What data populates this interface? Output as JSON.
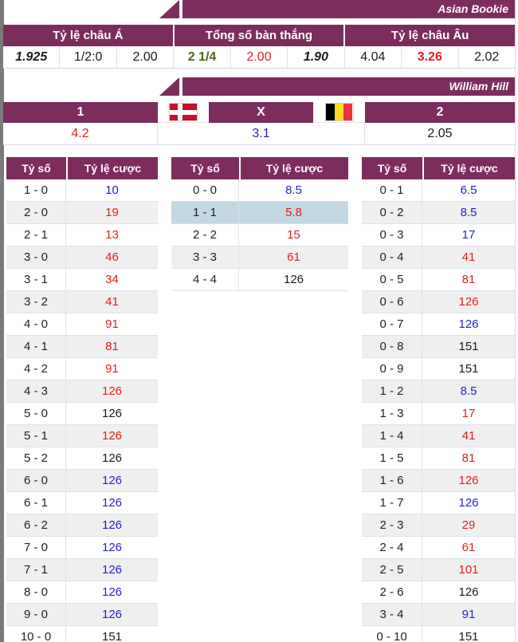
{
  "colors": {
    "purple": "#7c2d5d",
    "red": "#e01f1f",
    "blue": "#2323cc",
    "black": "#1a1a1a",
    "green": "#4a661a",
    "row_alt": "#efefef",
    "highlight": "#c3d8e2"
  },
  "banners": {
    "asian_bookie": "Asian Bookie",
    "william_hill": "William Hill"
  },
  "asian_odds": {
    "group_headers": [
      "Tỷ lệ châu Á",
      "Tổng số bàn thắng",
      "Tỷ lệ châu Âu"
    ],
    "values": [
      {
        "text": "1.925",
        "color": "black",
        "bold": true,
        "italic": true
      },
      {
        "text": "1/2:0",
        "color": "black",
        "bold": false,
        "italic": false
      },
      {
        "text": "2.00",
        "color": "black",
        "bold": false,
        "italic": false
      },
      {
        "text": "2 1/4",
        "color": "green",
        "bold": true,
        "italic": false
      },
      {
        "text": "2.00",
        "color": "red",
        "bold": false,
        "italic": false
      },
      {
        "text": "1.90",
        "color": "black",
        "bold": true,
        "italic": true
      },
      {
        "text": "4.04",
        "color": "black",
        "bold": false,
        "italic": false
      },
      {
        "text": "3.26",
        "color": "red",
        "bold": true,
        "italic": false
      },
      {
        "text": "2.02",
        "color": "black",
        "bold": false,
        "italic": false
      }
    ]
  },
  "william_hill": {
    "home_label": "1",
    "draw_label": "X",
    "away_label": "2",
    "home_flag": "denmark-flag",
    "away_flag": "belgium-flag",
    "values": [
      {
        "text": "4.2",
        "color": "red"
      },
      {
        "text": "3.1",
        "color": "blue"
      },
      {
        "text": "2.05",
        "color": "black"
      }
    ]
  },
  "score_tables": {
    "col_headers": [
      "Tỷ số",
      "Tỷ lệ cược"
    ],
    "tables": [
      {
        "name": "home-win-scores",
        "rows": [
          {
            "score": "1 - 0",
            "odds": "10",
            "color": "blue"
          },
          {
            "score": "2 - 0",
            "odds": "19",
            "color": "red"
          },
          {
            "score": "2 - 1",
            "odds": "13",
            "color": "red"
          },
          {
            "score": "3 - 0",
            "odds": "46",
            "color": "red"
          },
          {
            "score": "3 - 1",
            "odds": "34",
            "color": "red"
          },
          {
            "score": "3 - 2",
            "odds": "41",
            "color": "red"
          },
          {
            "score": "4 - 0",
            "odds": "91",
            "color": "red"
          },
          {
            "score": "4 - 1",
            "odds": "81",
            "color": "red"
          },
          {
            "score": "4 - 2",
            "odds": "91",
            "color": "red"
          },
          {
            "score": "4 - 3",
            "odds": "126",
            "color": "red"
          },
          {
            "score": "5 - 0",
            "odds": "126",
            "color": "black"
          },
          {
            "score": "5 - 1",
            "odds": "126",
            "color": "red"
          },
          {
            "score": "5 - 2",
            "odds": "126",
            "color": "black"
          },
          {
            "score": "6 - 0",
            "odds": "126",
            "color": "blue"
          },
          {
            "score": "6 - 1",
            "odds": "126",
            "color": "blue"
          },
          {
            "score": "6 - 2",
            "odds": "126",
            "color": "blue"
          },
          {
            "score": "7 - 0",
            "odds": "126",
            "color": "blue"
          },
          {
            "score": "7 - 1",
            "odds": "126",
            "color": "blue"
          },
          {
            "score": "8 - 0",
            "odds": "126",
            "color": "blue"
          },
          {
            "score": "9 - 0",
            "odds": "126",
            "color": "blue"
          },
          {
            "score": "10 - 0",
            "odds": "151",
            "color": "black"
          }
        ]
      },
      {
        "name": "draw-scores",
        "rows": [
          {
            "score": "0 - 0",
            "odds": "8.5",
            "color": "blue"
          },
          {
            "score": "1 - 1",
            "odds": "5.8",
            "color": "red",
            "highlight": true
          },
          {
            "score": "2 - 2",
            "odds": "15",
            "color": "red"
          },
          {
            "score": "3 - 3",
            "odds": "61",
            "color": "red"
          },
          {
            "score": "4 - 4",
            "odds": "126",
            "color": "black"
          }
        ]
      },
      {
        "name": "away-win-scores",
        "rows": [
          {
            "score": "0 - 1",
            "odds": "6.5",
            "color": "blue"
          },
          {
            "score": "0 - 2",
            "odds": "8.5",
            "color": "blue"
          },
          {
            "score": "0 - 3",
            "odds": "17",
            "color": "blue"
          },
          {
            "score": "0 - 4",
            "odds": "41",
            "color": "red"
          },
          {
            "score": "0 - 5",
            "odds": "81",
            "color": "red"
          },
          {
            "score": "0 - 6",
            "odds": "126",
            "color": "red"
          },
          {
            "score": "0 - 7",
            "odds": "126",
            "color": "blue"
          },
          {
            "score": "0 - 8",
            "odds": "151",
            "color": "black"
          },
          {
            "score": "0 - 9",
            "odds": "151",
            "color": "black"
          },
          {
            "score": "1 - 2",
            "odds": "8.5",
            "color": "blue"
          },
          {
            "score": "1 - 3",
            "odds": "17",
            "color": "red"
          },
          {
            "score": "1 - 4",
            "odds": "41",
            "color": "red"
          },
          {
            "score": "1 - 5",
            "odds": "81",
            "color": "red"
          },
          {
            "score": "1 - 6",
            "odds": "126",
            "color": "red"
          },
          {
            "score": "1 - 7",
            "odds": "126",
            "color": "blue"
          },
          {
            "score": "2 - 3",
            "odds": "29",
            "color": "red"
          },
          {
            "score": "2 - 4",
            "odds": "61",
            "color": "red"
          },
          {
            "score": "2 - 5",
            "odds": "101",
            "color": "red"
          },
          {
            "score": "2 - 6",
            "odds": "126",
            "color": "black"
          },
          {
            "score": "3 - 4",
            "odds": "91",
            "color": "blue"
          },
          {
            "score": "0 - 10",
            "odds": "151",
            "color": "black"
          }
        ]
      }
    ]
  }
}
